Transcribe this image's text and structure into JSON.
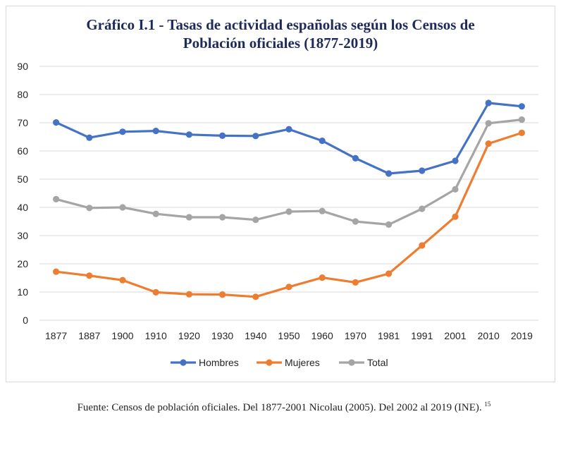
{
  "chart_data": {
    "type": "line",
    "title_line1": "Gráfico I.1 - Tasas de actividad españolas según los Censos de",
    "title_line2": "Población oficiales (1877-2019)",
    "categories": [
      "1877",
      "1887",
      "1900",
      "1910",
      "1920",
      "1930",
      "1940",
      "1950",
      "1960",
      "1970",
      "1981",
      "1991",
      "2001",
      "2010",
      "2019"
    ],
    "ylim": [
      0,
      90
    ],
    "yticks": [
      0,
      10,
      20,
      30,
      40,
      50,
      60,
      70,
      80,
      90
    ],
    "grid": true,
    "legend_position": "bottom",
    "series": [
      {
        "name": "Hombres",
        "color": "#4472c4",
        "values": [
          70.1,
          64.7,
          66.8,
          67.1,
          65.8,
          65.4,
          65.3,
          67.7,
          63.6,
          57.4,
          52.0,
          53.0,
          56.5,
          77.0,
          75.8
        ]
      },
      {
        "name": "Mujeres",
        "color": "#ed7d31",
        "values": [
          17.2,
          15.8,
          14.2,
          9.9,
          9.2,
          9.1,
          8.3,
          11.8,
          15.1,
          13.4,
          16.5,
          26.5,
          36.7,
          62.6,
          66.4
        ]
      },
      {
        "name": "Total",
        "color": "#a5a5a5",
        "values": [
          42.9,
          39.8,
          40.0,
          37.7,
          36.5,
          36.5,
          35.6,
          38.5,
          38.7,
          35.0,
          33.9,
          39.5,
          46.4,
          69.8,
          71.1
        ]
      }
    ]
  },
  "source": {
    "text": "Fuente: Censos de población oficiales. Del 1877-2001 Nicolau (2005). Del 2002 al 2019 (INE).",
    "footnote": "15"
  }
}
